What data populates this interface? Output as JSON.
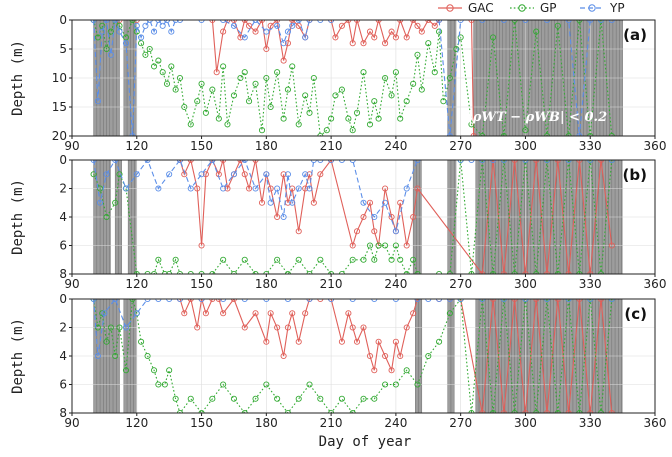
{
  "chart_data": [
    {
      "type": "line",
      "panel_label": "(a)",
      "ylabel": "Depth (m)",
      "xlim": [
        90,
        360
      ],
      "ylim": [
        20,
        0
      ],
      "xticks": [
        90,
        120,
        150,
        180,
        210,
        240,
        270,
        300,
        330,
        360
      ],
      "yticks": [
        0,
        5,
        10,
        15,
        20
      ],
      "annotation": "|ρWT − ρWB| < 0.2",
      "shaded_days": [
        [
          100,
          112
        ],
        [
          114,
          120
        ],
        [
          264,
          268
        ],
        [
          276,
          345
        ]
      ],
      "series": [
        {
          "name": "GAC",
          "x": [
            100,
            112,
            120,
            155,
            157,
            160,
            162,
            165,
            168,
            170,
            172,
            175,
            178,
            180,
            182,
            185,
            188,
            190,
            192,
            195,
            198,
            200,
            210,
            212,
            215,
            218,
            220,
            222,
            225,
            228,
            230,
            232,
            235,
            238,
            240,
            242,
            245,
            248,
            250,
            252,
            255,
            258,
            260,
            275,
            276
          ],
          "y": [
            0,
            0,
            0,
            0,
            9,
            2,
            0,
            0,
            3,
            0,
            1,
            2,
            0,
            5,
            1,
            0,
            7,
            4,
            0,
            1,
            3,
            0,
            0,
            3,
            1,
            0,
            4,
            0,
            4,
            2,
            3,
            0,
            4,
            2,
            3,
            0,
            3,
            0,
            1,
            2,
            0,
            1,
            0,
            0,
            20
          ]
        },
        {
          "name": "GP",
          "x": [
            100,
            102,
            104,
            106,
            108,
            110,
            112,
            115,
            118,
            120,
            122,
            124,
            126,
            128,
            130,
            132,
            134,
            136,
            138,
            140,
            142,
            145,
            148,
            150,
            152,
            155,
            158,
            160,
            162,
            165,
            168,
            170,
            172,
            175,
            178,
            180,
            182,
            185,
            188,
            190,
            192,
            195,
            198,
            200,
            202,
            205,
            208,
            210,
            212,
            215,
            218,
            220,
            222,
            225,
            228,
            230,
            232,
            235,
            238,
            240,
            242,
            245,
            248,
            250,
            252,
            255,
            258,
            260,
            262,
            265,
            268,
            270,
            275,
            280,
            285,
            290,
            295,
            300,
            305,
            310,
            315,
            320,
            325,
            330,
            335,
            340
          ],
          "y": [
            0,
            3,
            1,
            5,
            2,
            0,
            1,
            3,
            0,
            2,
            4,
            6,
            5,
            8,
            7,
            9,
            11,
            8,
            12,
            10,
            15,
            18,
            14,
            11,
            16,
            12,
            17,
            8,
            18,
            13,
            10,
            9,
            14,
            11,
            19,
            10,
            15,
            9,
            17,
            12,
            8,
            18,
            13,
            16,
            10,
            20,
            19,
            17,
            13,
            12,
            17,
            19,
            16,
            9,
            18,
            14,
            17,
            10,
            13,
            9,
            17,
            14,
            11,
            6,
            12,
            4,
            9,
            2,
            14,
            10,
            5,
            3,
            18,
            20,
            3,
            20,
            0,
            19,
            2,
            20,
            1,
            20,
            0,
            20,
            0,
            20
          ]
        },
        {
          "name": "YP",
          "x": [
            100,
            102,
            104,
            106,
            108,
            110,
            112,
            115,
            118,
            120,
            122,
            124,
            126,
            128,
            130,
            132,
            134,
            136,
            138,
            140,
            150,
            160,
            165,
            170,
            175,
            180,
            185,
            188,
            190,
            192,
            195,
            198,
            200,
            205,
            210,
            260,
            265,
            270,
            280,
            290,
            300,
            310,
            320,
            325,
            330,
            335,
            340
          ],
          "y": [
            0,
            14,
            2,
            0,
            6,
            0,
            2,
            4,
            20,
            1,
            3,
            1,
            0,
            2,
            0,
            1,
            0,
            2,
            0,
            0,
            0,
            0,
            1,
            3,
            0,
            2,
            1,
            4,
            2,
            1,
            0,
            3,
            0,
            0,
            0,
            0,
            20,
            0,
            0,
            0,
            0,
            0,
            0,
            20,
            0,
            0,
            0
          ]
        }
      ]
    },
    {
      "type": "line",
      "panel_label": "(b)",
      "ylabel": "Depth (m)",
      "xlim": [
        90,
        360
      ],
      "ylim": [
        8,
        0
      ],
      "xticks": [
        90,
        120,
        150,
        180,
        210,
        240,
        270,
        300,
        330,
        360
      ],
      "yticks": [
        0,
        2,
        4,
        6,
        8
      ],
      "shaded_days": [
        [
          100,
          108
        ],
        [
          110,
          113
        ],
        [
          116,
          120
        ],
        [
          248,
          252
        ],
        [
          264,
          268
        ],
        [
          277,
          345
        ]
      ],
      "series": [
        {
          "name": "GAC",
          "x": [
            140,
            142,
            145,
            148,
            150,
            152,
            155,
            158,
            160,
            162,
            165,
            168,
            170,
            172,
            175,
            178,
            180,
            182,
            185,
            188,
            190,
            192,
            195,
            198,
            200,
            202,
            205,
            210,
            220,
            222,
            225,
            228,
            230,
            232,
            235,
            238,
            240,
            242,
            245,
            248,
            250,
            280,
            285,
            290,
            295,
            300,
            305,
            310,
            315,
            320,
            325,
            330,
            335,
            340
          ],
          "y": [
            0,
            1,
            0,
            2,
            6,
            1,
            0,
            1,
            0,
            2,
            1,
            0,
            1,
            2,
            0,
            3,
            1,
            2,
            4,
            1,
            3,
            2,
            5,
            2,
            1,
            3,
            1,
            0,
            6,
            5,
            4,
            3,
            5,
            6,
            2,
            4,
            5,
            3,
            6,
            4,
            2,
            8,
            0,
            8,
            0,
            8,
            0,
            8,
            0,
            8,
            0,
            8,
            0,
            6
          ]
        },
        {
          "name": "GP",
          "x": [
            100,
            103,
            106,
            110,
            112,
            115,
            120,
            125,
            128,
            130,
            133,
            135,
            138,
            140,
            145,
            150,
            155,
            160,
            165,
            170,
            175,
            180,
            185,
            190,
            195,
            200,
            205,
            210,
            215,
            220,
            225,
            228,
            230,
            232,
            235,
            238,
            240,
            242,
            245,
            248,
            250,
            260,
            265,
            270,
            275,
            280,
            285,
            290,
            295,
            300,
            305,
            310,
            315,
            320,
            325,
            330,
            335,
            340
          ],
          "y": [
            1,
            2,
            4,
            3,
            1,
            2,
            8,
            8,
            8,
            7,
            8,
            8,
            7,
            8,
            8,
            8,
            8,
            7,
            8,
            7,
            8,
            8,
            7,
            8,
            7,
            8,
            7,
            8,
            8,
            7,
            7,
            6,
            7,
            6,
            6,
            7,
            6,
            7,
            8,
            7,
            8,
            8,
            8,
            0,
            8,
            0,
            8,
            0,
            8,
            0,
            8,
            0,
            8,
            0,
            8,
            0,
            8,
            0
          ]
        },
        {
          "name": "YP",
          "x": [
            100,
            103,
            106,
            110,
            115,
            120,
            125,
            130,
            135,
            140,
            145,
            150,
            155,
            160,
            165,
            170,
            175,
            180,
            182,
            185,
            188,
            190,
            192,
            195,
            198,
            200,
            202,
            205,
            210,
            215,
            220,
            225,
            230,
            235,
            240,
            245,
            250,
            270,
            275,
            280,
            285,
            290,
            300,
            310,
            320,
            330,
            340
          ],
          "y": [
            0,
            3,
            1,
            0,
            2,
            1,
            0,
            2,
            1,
            0,
            2,
            1,
            0,
            2,
            1,
            0,
            2,
            1,
            3,
            2,
            4,
            1,
            3,
            2,
            1,
            2,
            0,
            0,
            0,
            0,
            0,
            3,
            4,
            3,
            5,
            2,
            0,
            0,
            0,
            0,
            0,
            0,
            0,
            0,
            0,
            0,
            0
          ]
        }
      ]
    },
    {
      "type": "line",
      "panel_label": "(c)",
      "ylabel": "Depth (m)",
      "xlim": [
        90,
        360
      ],
      "ylim": [
        8,
        0
      ],
      "xticks": [
        90,
        120,
        150,
        180,
        210,
        240,
        270,
        300,
        330,
        360
      ],
      "yticks": [
        0,
        2,
        4,
        6,
        8
      ],
      "shaded_days": [
        [
          100,
          112
        ],
        [
          114,
          120
        ],
        [
          249,
          252
        ],
        [
          264,
          267
        ],
        [
          277,
          345
        ]
      ],
      "series": [
        {
          "name": "GAC",
          "x": [
            140,
            142,
            145,
            148,
            150,
            152,
            155,
            158,
            160,
            165,
            170,
            175,
            180,
            182,
            185,
            188,
            190,
            192,
            195,
            198,
            200,
            205,
            210,
            215,
            218,
            220,
            222,
            225,
            228,
            230,
            232,
            235,
            238,
            240,
            242,
            245,
            248,
            250,
            260,
            265,
            270,
            280,
            285,
            290,
            295,
            300,
            305,
            310,
            315,
            320,
            325,
            330,
            335,
            340
          ],
          "y": [
            0,
            1,
            0,
            2,
            0,
            1,
            0,
            0,
            1,
            0,
            2,
            1,
            3,
            1,
            2,
            4,
            2,
            1,
            3,
            1,
            0,
            0,
            0,
            3,
            1,
            2,
            3,
            2,
            4,
            5,
            3,
            4,
            5,
            3,
            4,
            2,
            1,
            0,
            0,
            0,
            0,
            8,
            0,
            8,
            0,
            8,
            0,
            8,
            0,
            8,
            0,
            8,
            0,
            8
          ]
        },
        {
          "name": "GP",
          "x": [
            100,
            102,
            104,
            106,
            108,
            110,
            112,
            115,
            118,
            120,
            122,
            125,
            128,
            130,
            133,
            135,
            138,
            140,
            145,
            150,
            155,
            160,
            165,
            170,
            175,
            180,
            185,
            190,
            195,
            200,
            205,
            210,
            215,
            220,
            225,
            230,
            235,
            240,
            245,
            250,
            255,
            260,
            265,
            270,
            275,
            280,
            285,
            290,
            295,
            300,
            305,
            310,
            315,
            320,
            325,
            330,
            335,
            340
          ],
          "y": [
            0,
            2,
            1,
            3,
            2,
            4,
            2,
            5,
            0,
            1,
            3,
            4,
            5,
            6,
            6,
            5,
            7,
            8,
            7,
            8,
            7,
            6,
            7,
            8,
            7,
            6,
            7,
            8,
            7,
            6,
            7,
            8,
            7,
            8,
            7,
            7,
            6,
            6,
            5,
            6,
            4,
            3,
            1,
            0,
            8,
            0,
            8,
            0,
            8,
            0,
            8,
            0,
            8,
            0,
            8,
            0,
            8,
            0
          ]
        },
        {
          "name": "YP",
          "x": [
            100,
            102,
            105,
            110,
            115,
            120,
            125,
            130,
            135,
            140,
            150,
            160,
            170,
            180,
            190,
            200,
            210,
            220,
            230,
            240,
            250,
            255,
            260,
            265,
            270,
            280,
            290,
            300,
            310,
            320,
            330,
            340
          ],
          "y": [
            0,
            4,
            1,
            0,
            2,
            1,
            0,
            0,
            0,
            0,
            0,
            0,
            0,
            0,
            0,
            0,
            0,
            0,
            0,
            0,
            0,
            0,
            0,
            0,
            0,
            0,
            0,
            0,
            0,
            0,
            0,
            0
          ]
        }
      ]
    }
  ],
  "legend": {
    "position": "top-right",
    "items": [
      {
        "name": "GAC",
        "color": "#e0605a",
        "dash": "solid",
        "marker": "circle"
      },
      {
        "name": "GP",
        "color": "#33aa33",
        "dash": "dotted",
        "marker": "circle"
      },
      {
        "name": "YP",
        "color": "#5b8ee8",
        "dash": "dashed",
        "marker": "circle"
      }
    ]
  },
  "xlabel": "Day of year",
  "shade_color": "#8c8c8c",
  "grid": true
}
